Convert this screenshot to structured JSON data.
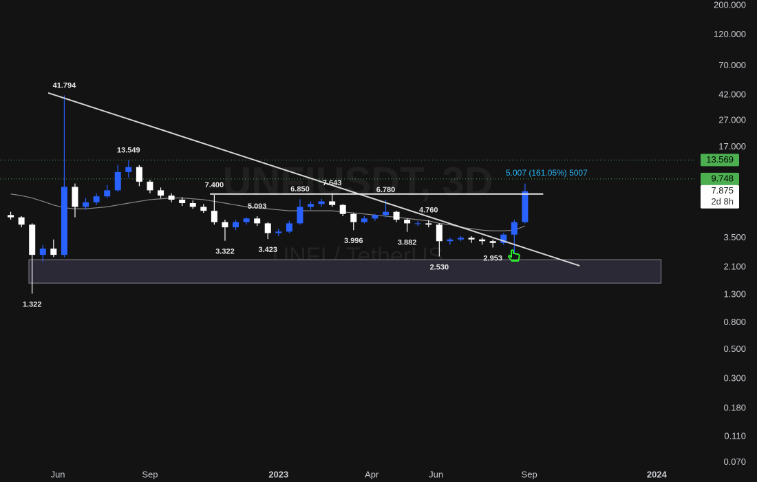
{
  "chart_data": {
    "type": "candlestick",
    "watermark": {
      "symbol": "UNFIUSDT, 3D",
      "pair": "UNFI / TetherUS"
    },
    "fib_label": "5.007 (161.05%) 5007",
    "log_scale": true,
    "xlim": [
      -1,
      64
    ],
    "ylim": [
      0.0664,
      220
    ],
    "xticks": [
      {
        "value": 4.4,
        "label": "Jun"
      },
      {
        "value": 13.0,
        "label": "Sep"
      },
      {
        "value": 25.0,
        "label": "2023"
      },
      {
        "value": 33.7,
        "label": "Apr"
      },
      {
        "value": 39.7,
        "label": "Jun"
      },
      {
        "value": 48.4,
        "label": "Sep"
      },
      {
        "value": 60.3,
        "label": "2024"
      }
    ],
    "yticks": [
      {
        "value": 200,
        "label": "200.000"
      },
      {
        "value": 120,
        "label": "120.000"
      },
      {
        "value": 70,
        "label": "70.000"
      },
      {
        "value": 42,
        "label": "42.000"
      },
      {
        "value": 27,
        "label": "27.000"
      },
      {
        "value": 17,
        "label": "17.000"
      },
      {
        "value": 3.5,
        "label": "3.500"
      },
      {
        "value": 2.1,
        "label": "2.100"
      },
      {
        "value": 1.3,
        "label": "1.300"
      },
      {
        "value": 0.8,
        "label": "0.800"
      },
      {
        "value": 0.5,
        "label": "0.500"
      },
      {
        "value": 0.3,
        "label": "0.300"
      },
      {
        "value": 0.18,
        "label": "0.180"
      },
      {
        "value": 0.11,
        "label": "0.110"
      },
      {
        "value": 0.07,
        "label": "0.070"
      }
    ],
    "up_color": "#2962ff",
    "down_color": "#ffffff",
    "candles": {
      "open": [
        5.2,
        5.0,
        4.4,
        2.6,
        2.9,
        2.6,
        8.5,
        6.0,
        6.5,
        7.2,
        8.0,
        11.0,
        12.0,
        9.3,
        8.0,
        7.3,
        6.8,
        6.4,
        6.0,
        5.6,
        4.6,
        4.2,
        4.6,
        4.9,
        4.5,
        3.8,
        3.9,
        4.5,
        6.0,
        6.3,
        6.6,
        6.2,
        5.3,
        4.6,
        4.9,
        5.2,
        5.5,
        4.8,
        4.5,
        4.5,
        4.4,
        3.3,
        3.4,
        3.5,
        3.4,
        3.3,
        3.2,
        3.7,
        4.6
      ],
      "high": [
        5.5,
        5.1,
        4.5,
        3.1,
        3.4,
        41.794,
        9.0,
        7.0,
        7.6,
        8.8,
        12.5,
        13.549,
        12.4,
        9.6,
        8.4,
        7.6,
        7.1,
        6.7,
        6.3,
        7.4,
        4.8,
        4.8,
        5.0,
        5.093,
        4.6,
        4.1,
        4.7,
        6.85,
        6.6,
        6.9,
        7.643,
        6.3,
        5.4,
        5.1,
        5.3,
        6.78,
        5.6,
        4.9,
        4.7,
        4.76,
        4.5,
        3.5,
        3.6,
        3.6,
        3.5,
        3.4,
        3.8,
        4.8,
        9.0
      ],
      "low": [
        4.8,
        4.2,
        1.322,
        2.3,
        2.5,
        2.5,
        5.0,
        5.7,
        6.2,
        7.0,
        7.8,
        10.0,
        8.6,
        7.6,
        7.0,
        6.5,
        6.1,
        5.8,
        5.4,
        4.4,
        3.322,
        4.0,
        4.4,
        4.3,
        3.423,
        3.6,
        3.8,
        4.4,
        5.7,
        6.0,
        6.0,
        5.1,
        3.996,
        4.5,
        4.7,
        5.0,
        4.6,
        3.882,
        4.3,
        4.2,
        2.53,
        3.1,
        3.3,
        3.2,
        3.1,
        2.953,
        3.1,
        2.7,
        4.5
      ],
      "close": [
        5.0,
        4.4,
        2.6,
        2.9,
        2.6,
        8.5,
        6.0,
        6.5,
        7.2,
        8.0,
        11.0,
        12.0,
        9.3,
        8.0,
        7.3,
        6.8,
        6.4,
        6.0,
        5.6,
        4.6,
        4.2,
        4.6,
        4.9,
        4.5,
        3.8,
        3.9,
        4.5,
        6.0,
        6.3,
        6.6,
        6.2,
        5.3,
        4.6,
        4.9,
        5.2,
        5.5,
        4.8,
        4.5,
        4.5,
        4.4,
        3.3,
        3.4,
        3.5,
        3.4,
        3.3,
        3.2,
        3.7,
        4.6,
        7.875
      ]
    },
    "moving_average": {
      "color": "#8a8a8a",
      "values": [
        7.5,
        7.3,
        7.0,
        6.6,
        6.2,
        5.9,
        5.8,
        5.8,
        5.9,
        6.0,
        6.2,
        6.4,
        6.6,
        6.8,
        6.9,
        7.0,
        7.0,
        6.9,
        6.8,
        6.6,
        6.4,
        6.2,
        6.0,
        5.9,
        5.8,
        5.7,
        5.6,
        5.6,
        5.6,
        5.6,
        5.6,
        5.5,
        5.4,
        5.3,
        5.2,
        5.1,
        5.0,
        4.9,
        4.8,
        4.7,
        4.5,
        4.4,
        4.2,
        4.1,
        4.0,
        3.95,
        3.95,
        4.0,
        4.3
      ]
    },
    "annotations": [
      {
        "index": 2,
        "value": 1.322,
        "label": "1.322"
      },
      {
        "index": 5,
        "value": 41.794,
        "label": "41.794"
      },
      {
        "index": 11,
        "value": 13.549,
        "label": "13.549"
      },
      {
        "index": 19,
        "value": 7.4,
        "label": "7.400"
      },
      {
        "index": 20,
        "value": 3.322,
        "label": "3.322"
      },
      {
        "index": 23,
        "value": 5.093,
        "label": "5.093"
      },
      {
        "index": 24,
        "value": 3.423,
        "label": "3.423"
      },
      {
        "index": 27,
        "value": 6.85,
        "label": "6.850"
      },
      {
        "index": 30,
        "value": 7.643,
        "label": "7.643"
      },
      {
        "index": 32,
        "value": 3.996,
        "label": "3.996"
      },
      {
        "index": 35,
        "value": 6.78,
        "label": "6.780"
      },
      {
        "index": 37,
        "value": 3.882,
        "label": "3.882"
      },
      {
        "index": 39,
        "value": 4.76,
        "label": "4.760"
      },
      {
        "index": 40,
        "value": 2.53,
        "label": "2.530"
      },
      {
        "index": 45,
        "value": 2.953,
        "label": "2.953"
      }
    ],
    "lines": [
      {
        "from": [
          3.5,
          43.6
        ],
        "to": [
          53.1,
          2.15
        ],
        "color": "#d6d6d6"
      },
      {
        "from": [
          18.6,
          7.5
        ],
        "to": [
          49.7,
          7.5
        ],
        "color": "#e8e8e8"
      }
    ],
    "zone": {
      "x": [
        1.7,
        60.7
      ],
      "y": [
        1.59,
        2.39
      ],
      "color": "#2b2935"
    },
    "price_lines": [
      {
        "value": 13.569,
        "label": "13.569",
        "color": "#4caf50",
        "line": true
      },
      {
        "value": 9.748,
        "label": "9.748",
        "color": "#4caf50",
        "line": true
      },
      {
        "value": 7.875,
        "label": "7.875",
        "countdown": "2d 8h",
        "color": "#ffffff",
        "line": false
      }
    ]
  }
}
